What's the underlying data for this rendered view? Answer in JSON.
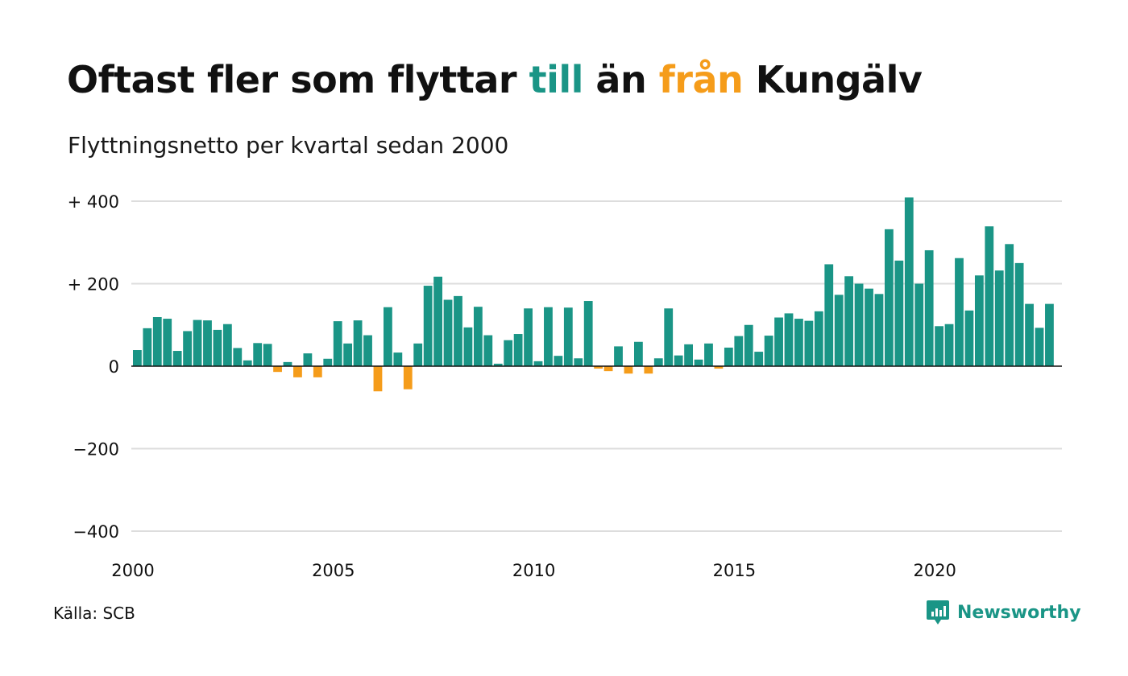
{
  "title": {
    "part1": "Oftast fler som flyttar ",
    "part2": "till",
    "part3": " än ",
    "part4": "från",
    "part5": " Kungälv"
  },
  "subtitle": "Flyttningsnetto per kvartal sedan 2000",
  "source": "Källa: SCB",
  "brand": {
    "name": "Newsworthy",
    "logo_icon": "newsworthy-chart-bubble-icon"
  },
  "colors": {
    "positive": "#1a9586",
    "negative": "#f59c1a",
    "grid": "#dddddd",
    "axis": "#111111"
  },
  "chart_data": {
    "type": "bar",
    "title": "Oftast fler som flyttar till än från Kungälv",
    "subtitle": "Flyttningsnetto per kvartal sedan 2000",
    "ylim": [
      -400,
      400
    ],
    "y_ticks": [
      {
        "value": 400,
        "label": "+ 400"
      },
      {
        "value": 200,
        "label": "+ 200"
      },
      {
        "value": 0,
        "label": "0"
      },
      {
        "value": -200,
        "label": "−200"
      },
      {
        "value": -400,
        "label": "−400"
      }
    ],
    "x_ticks": [
      {
        "value": 2000,
        "label": "2000"
      },
      {
        "value": 2005,
        "label": "2005"
      },
      {
        "value": 2010,
        "label": "2010"
      },
      {
        "value": 2015,
        "label": "2015"
      },
      {
        "value": 2020,
        "label": "2020"
      }
    ],
    "start_year": 2000,
    "grid": true,
    "values": [
      39,
      92,
      119,
      115,
      37,
      85,
      112,
      111,
      88,
      102,
      44,
      14,
      56,
      54,
      -14,
      10,
      -27,
      31,
      -27,
      18,
      109,
      55,
      111,
      75,
      -61,
      143,
      33,
      -56,
      55,
      195,
      217,
      161,
      170,
      94,
      144,
      75,
      6,
      63,
      78,
      140,
      12,
      143,
      25,
      142,
      19,
      158,
      -6,
      -12,
      48,
      -18,
      59,
      -18,
      19,
      140,
      26,
      53,
      16,
      55,
      -6,
      45,
      73,
      100,
      35,
      74,
      118,
      128,
      115,
      110,
      133,
      247,
      173,
      218,
      200,
      188,
      175,
      332,
      256,
      409,
      200,
      281,
      97,
      102,
      262,
      135,
      220,
      339,
      232,
      296,
      250,
      151,
      93,
      151
    ]
  }
}
